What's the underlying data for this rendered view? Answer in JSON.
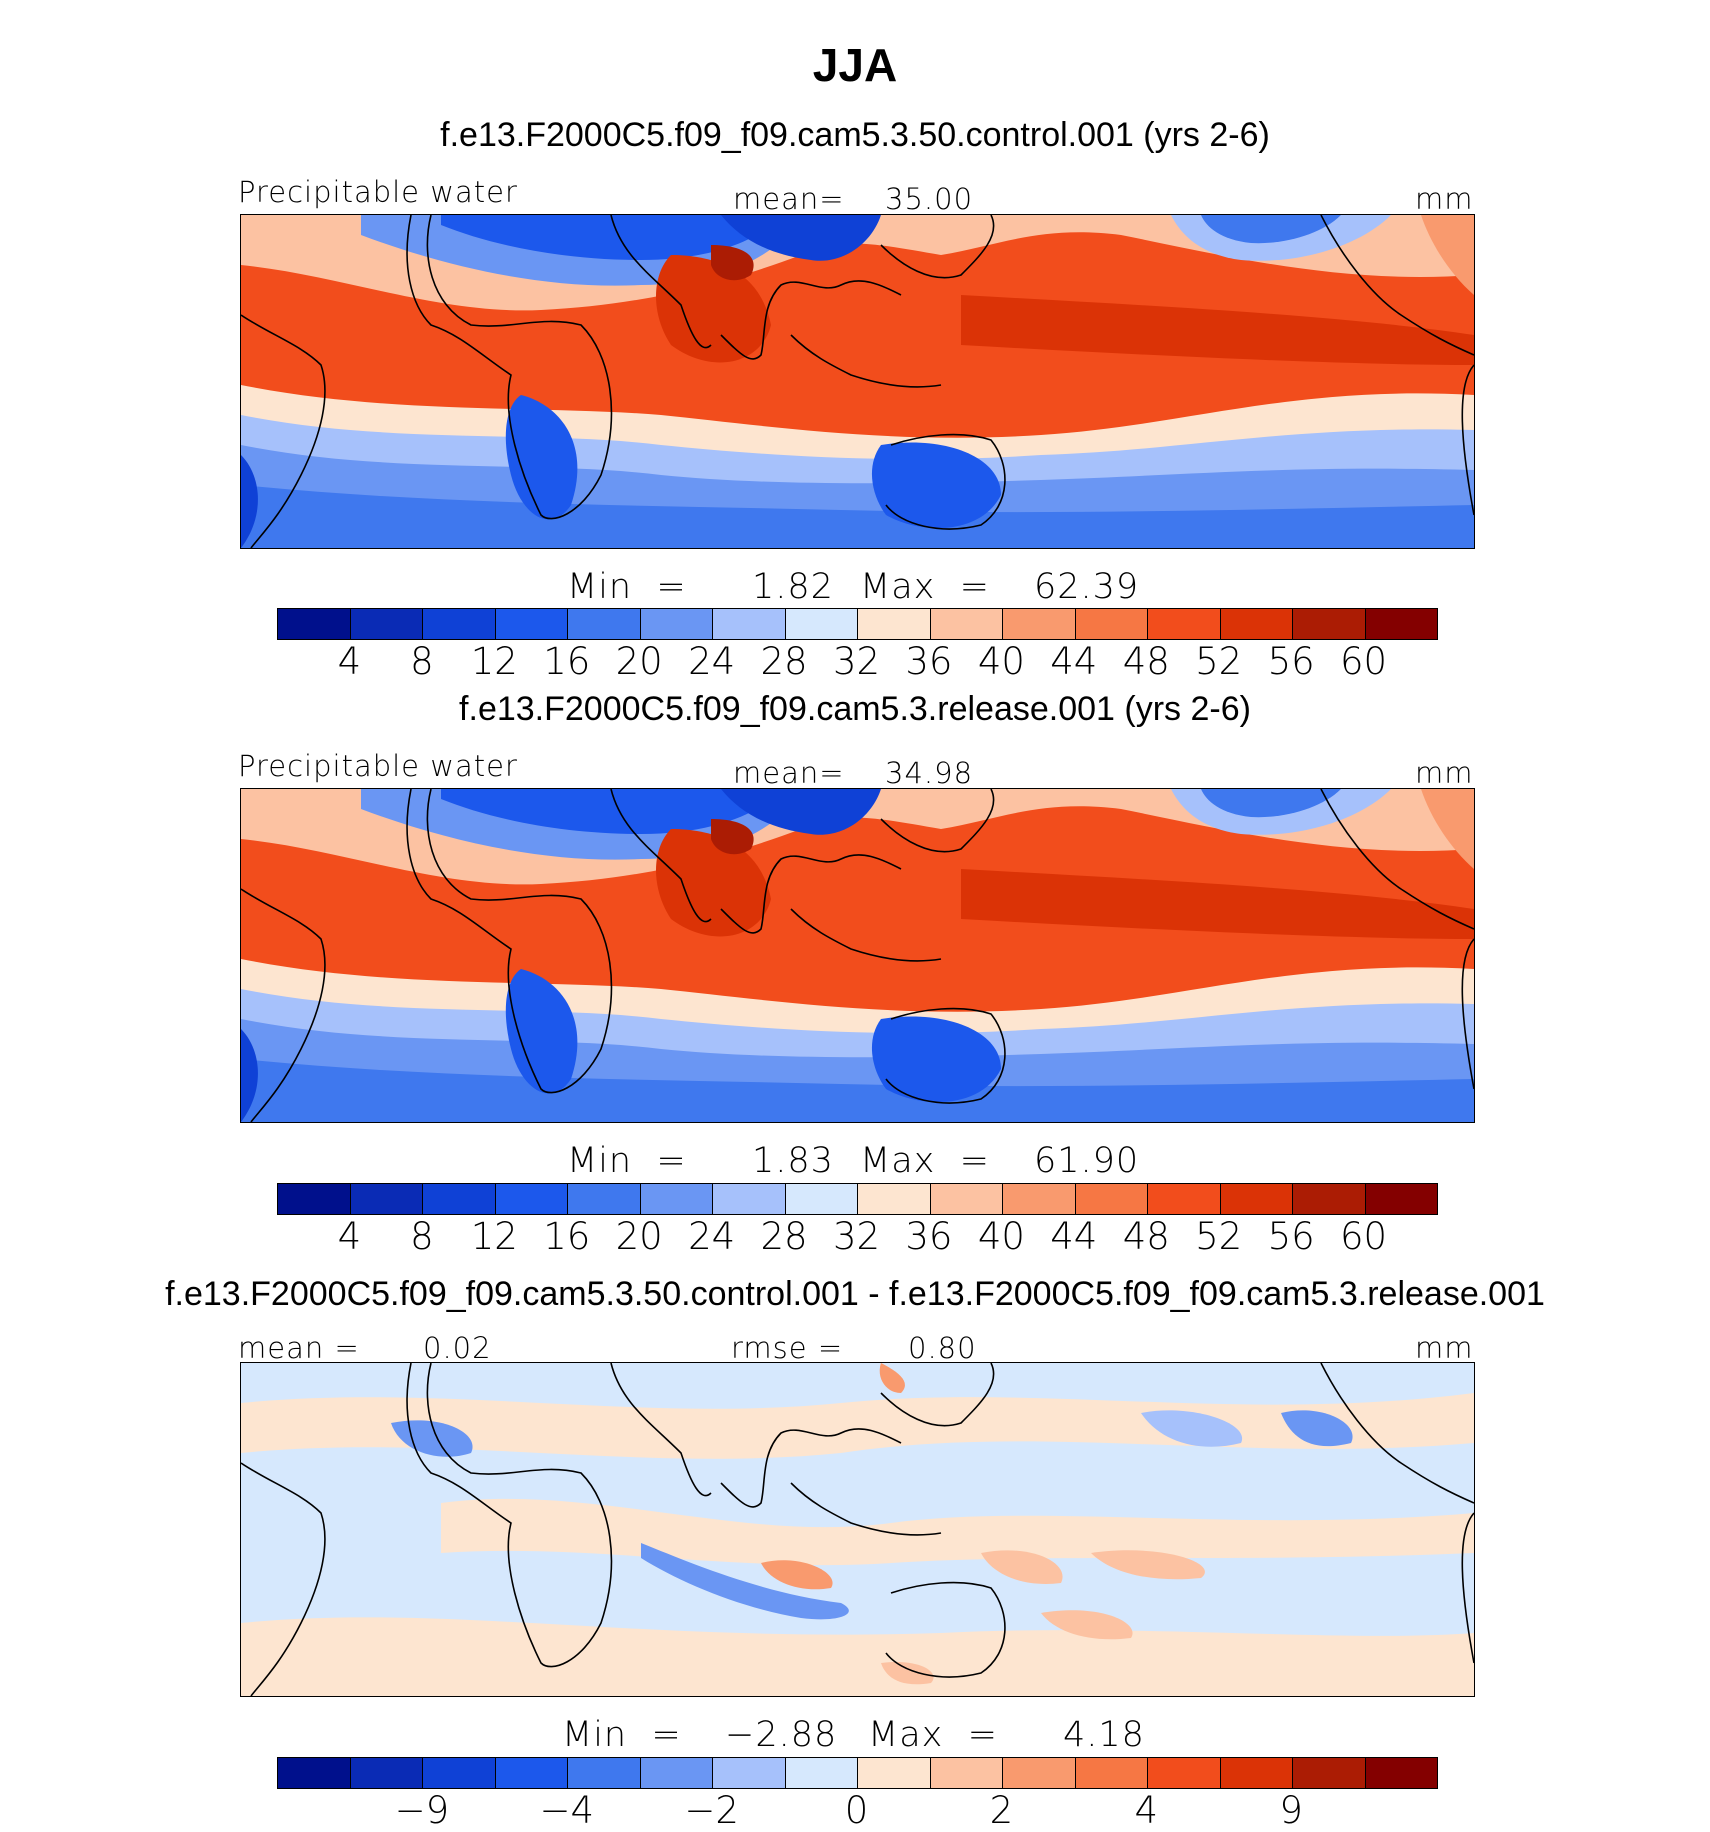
{
  "title": "JJA",
  "colors": {
    "abs_levels": [
      "#00108c",
      "#0a2bb5",
      "#0f41d6",
      "#1c58ec",
      "#3f78ee",
      "#6a96f3",
      "#a6c1fb",
      "#d6e8fd",
      "#fde5d0",
      "#fcc2a2",
      "#f99a6e",
      "#f67744",
      "#f24d1c",
      "#db3306",
      "#ab1c04",
      "#840000"
    ],
    "diff_levels": [
      "#00108c",
      "#0a2bb5",
      "#0f41d6",
      "#1c58ec",
      "#3f78ee",
      "#6a96f3",
      "#a6c1fb",
      "#d6e8fd",
      "#fde5d0",
      "#fcc2a2",
      "#f99a6e",
      "#f67744",
      "#f24d1c",
      "#db3306",
      "#ab1c04",
      "#840000"
    ]
  },
  "panels": [
    {
      "case_title": "f.e13.F2000C5.f09_f09.cam5.3.50.control.001 (yrs 2-6)",
      "variable": "Precipitable water",
      "mean_label": "mean=",
      "mean_value": "35.00",
      "units": "mm",
      "min_label": "Min  =",
      "min_value": "1.82",
      "max_label": "Max  =",
      "max_value": "62.39",
      "ticks": [
        "4",
        "8",
        "12",
        "16",
        "20",
        "24",
        "28",
        "32",
        "36",
        "40",
        "44",
        "48",
        "52",
        "56",
        "60"
      ]
    },
    {
      "case_title": "f.e13.F2000C5.f09_f09.cam5.3.release.001 (yrs 2-6)",
      "variable": "Precipitable water",
      "mean_label": "mean=",
      "mean_value": "34.98",
      "units": "mm",
      "min_label": "Min  =",
      "min_value": "1.83",
      "max_label": "Max  =",
      "max_value": "61.90",
      "ticks": [
        "4",
        "8",
        "12",
        "16",
        "20",
        "24",
        "28",
        "32",
        "36",
        "40",
        "44",
        "48",
        "52",
        "56",
        "60"
      ]
    },
    {
      "case_title": "f.e13.F2000C5.f09_f09.cam5.3.50.control.001 - f.e13.F2000C5.f09_f09.cam5.3.release.001",
      "mean_label": "mean  =",
      "mean_value": "0.02",
      "rmse_label": "rmse  =",
      "rmse_value": "0.80",
      "units": "mm",
      "min_label": "Min  =",
      "min_value": "−2.88",
      "max_label": "Max  =",
      "max_value": "4.18",
      "ticks": [
        "−9",
        "−4",
        "−2",
        "0",
        "2",
        "4",
        "9"
      ]
    }
  ]
}
